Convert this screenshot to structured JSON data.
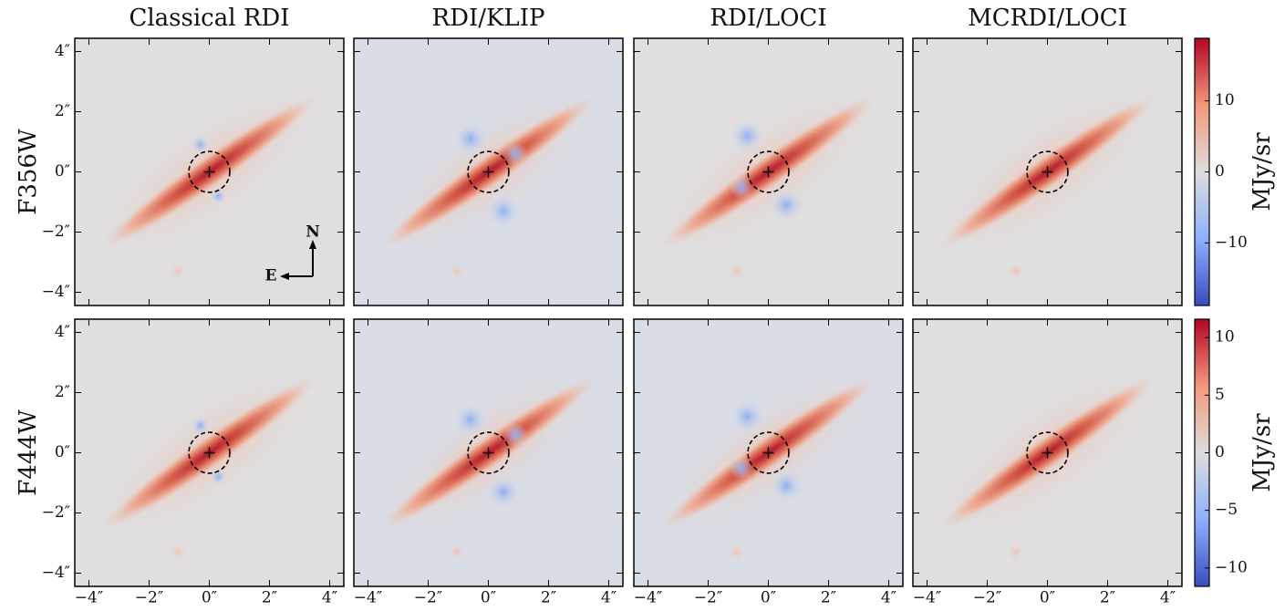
{
  "chart_data": {
    "type": "image-grid",
    "column_titles": [
      "Classical RDI",
      "RDI/KLIP",
      "RDI/LOCI",
      "MCRDI/LOCI"
    ],
    "row_labels": [
      "F356W",
      "F444W"
    ],
    "xlim": [
      -4.47,
      4.47
    ],
    "ylim": [
      -4.44,
      4.44
    ],
    "xticks": [
      {
        "value": -4,
        "label": "−4″"
      },
      {
        "value": -2,
        "label": "−2″"
      },
      {
        "value": 0,
        "label": "0″"
      },
      {
        "value": 2,
        "label": "2″"
      },
      {
        "value": 4,
        "label": "4″"
      }
    ],
    "yticks": [
      {
        "value": -4,
        "label": "−4″"
      },
      {
        "value": -2,
        "label": "−2″"
      },
      {
        "value": 0,
        "label": "0″"
      },
      {
        "value": 2,
        "label": "2″"
      },
      {
        "value": 4,
        "label": "4″"
      }
    ],
    "colorbars": [
      {
        "label": "MJy/sr",
        "lim": [
          -18.8,
          18.8
        ],
        "ticks": [
          {
            "value": -10,
            "label": "−10"
          },
          0,
          10
        ]
      },
      {
        "label": "MJy/sr",
        "lim": [
          -11.6,
          11.6
        ],
        "ticks": [
          {
            "value": -10,
            "label": "−10"
          },
          {
            "value": -5,
            "label": "−5"
          },
          0,
          5,
          10
        ]
      }
    ],
    "compass": {
      "north": "N",
      "east": "E"
    }
  }
}
